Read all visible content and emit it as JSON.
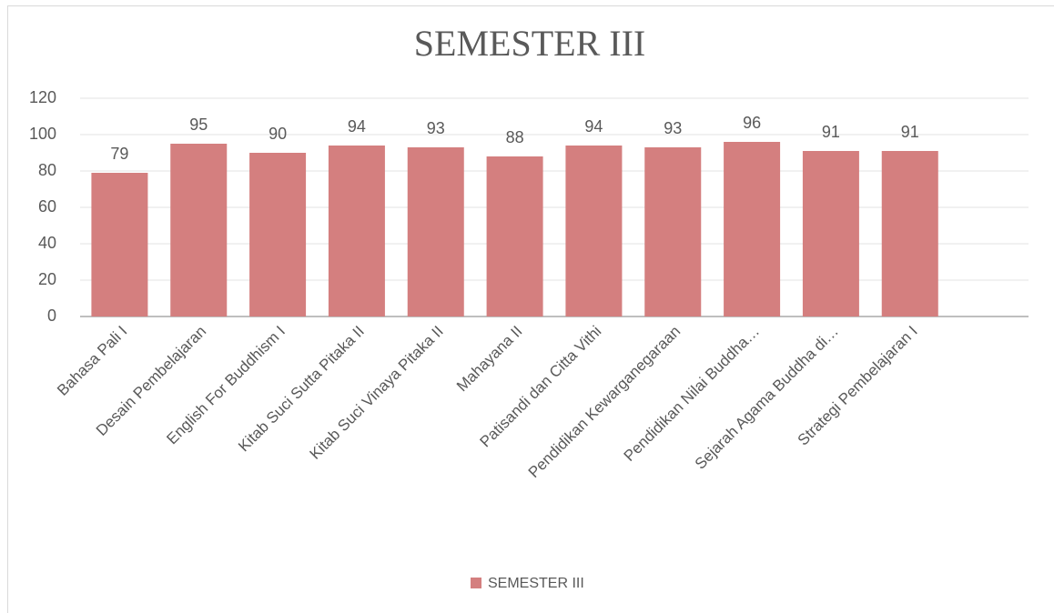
{
  "chart_data": {
    "type": "bar",
    "title": "SEMESTER III",
    "categories": [
      "Bahasa Pali I",
      "Desain Pembelajaran",
      "English For Buddhism I",
      "Kitab Suci Sutta Pitaka II",
      "Kitab Suci Vinaya Pitaka II",
      "Mahayana II",
      "Patisandi dan Citta Vithi",
      "Pendidikan Kewarganegaraan",
      "Pendidikan Nilai Buddha…",
      "Sejarah Agama Buddha di…",
      "Strategi Pembelajaran I",
      null
    ],
    "series": [
      {
        "name": "SEMESTER III",
        "color": "#d47f7f",
        "values": [
          79,
          95,
          90,
          94,
          93,
          88,
          94,
          93,
          96,
          91,
          91,
          null
        ]
      }
    ],
    "ylim": [
      0,
      120
    ],
    "yticks": [
      0,
      20,
      40,
      60,
      80,
      100,
      120
    ],
    "grid": true,
    "legend": "bottom"
  }
}
